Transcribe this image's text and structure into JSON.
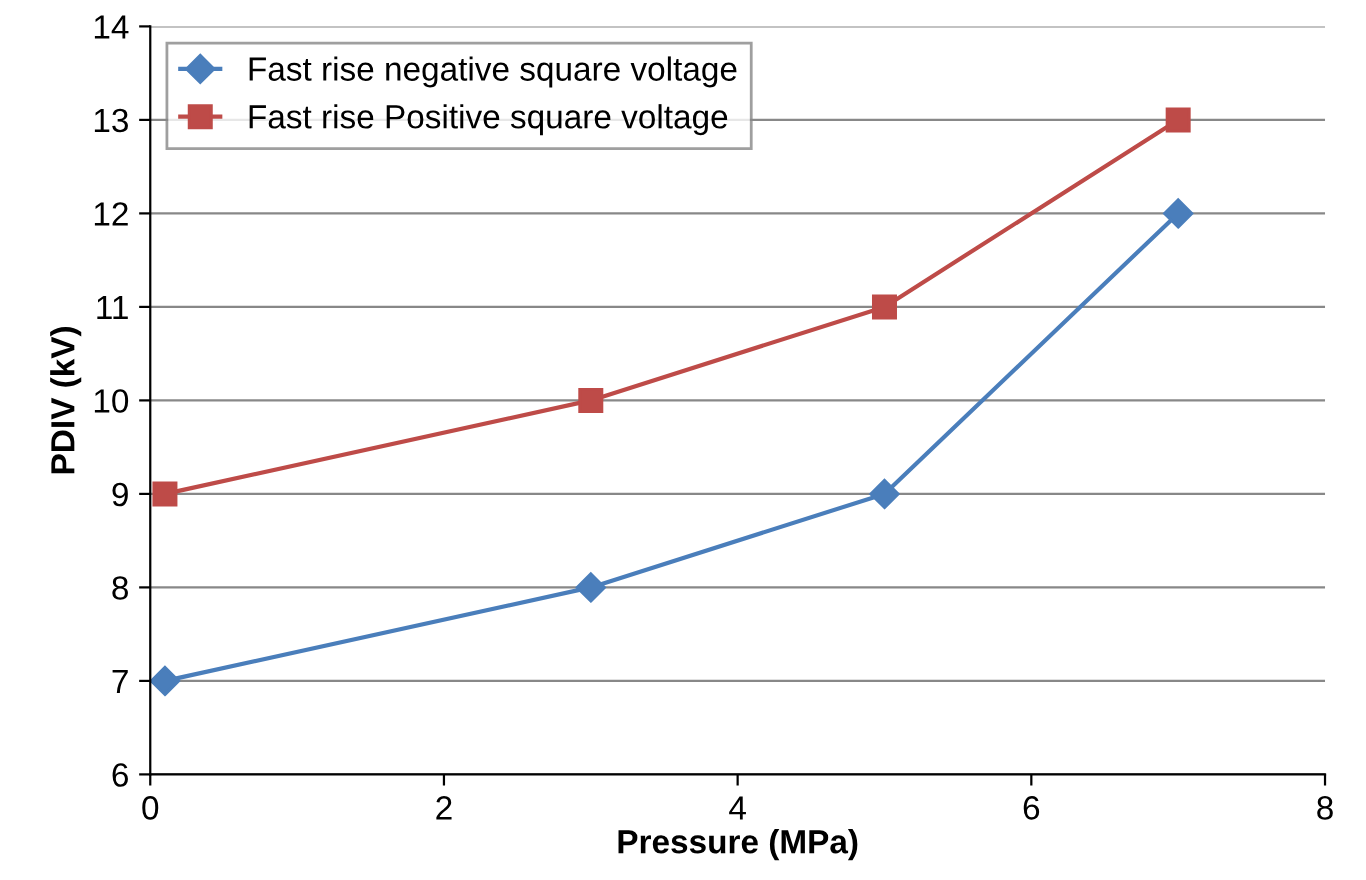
{
  "chart_data": {
    "type": "line",
    "xlabel": "Pressure (MPa)",
    "ylabel": "PDIV (kV)",
    "xlim": [
      0,
      8
    ],
    "xticks": [
      0,
      2,
      4,
      6,
      8
    ],
    "ylim": [
      6,
      14
    ],
    "yticks": [
      6,
      7,
      8,
      9,
      10,
      11,
      12,
      13,
      14
    ],
    "grid": "y",
    "legend": "top left",
    "line_style": "solid",
    "series": [
      {
        "name": "Fast rise negative square voltage",
        "color": "#4a7ebb",
        "marker": "diamond",
        "x": [
          0.1,
          3,
          5,
          7
        ],
        "values": [
          7,
          8,
          9,
          12
        ]
      },
      {
        "name": "Fast rise Positive square voltage",
        "color": "#be4b48",
        "marker": "square",
        "x": [
          0.1,
          3,
          5,
          7
        ],
        "values": [
          9,
          10,
          11,
          13
        ]
      }
    ]
  }
}
